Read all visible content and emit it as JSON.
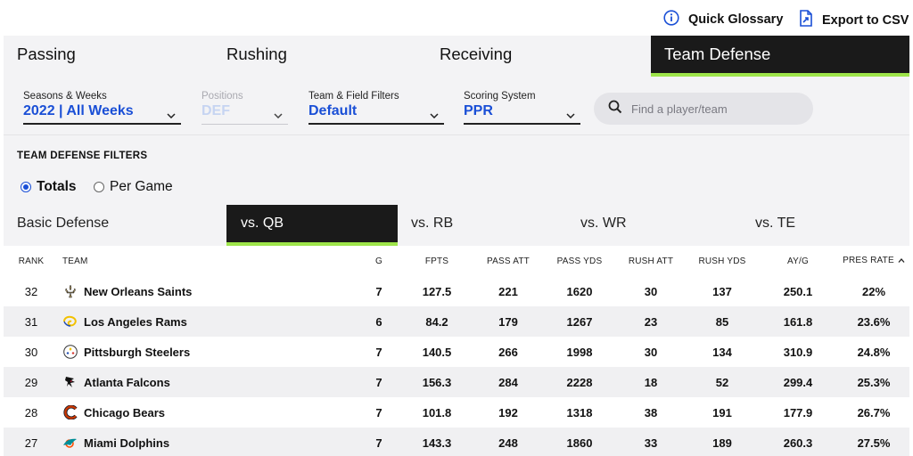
{
  "toolbar": {
    "glossary_label": "Quick Glossary",
    "export_label": "Export to CSV"
  },
  "main_tabs": [
    {
      "label": "Passing"
    },
    {
      "label": "Rushing"
    },
    {
      "label": "Receiving"
    },
    {
      "label": "Team Defense",
      "active": true
    }
  ],
  "filters": {
    "seasons": {
      "label": "Seasons & Weeks",
      "value": "2022 | All Weeks"
    },
    "positions": {
      "label": "Positions",
      "value": "DEF",
      "disabled": true
    },
    "team_field": {
      "label": "Team & Field Filters",
      "value": "Default"
    },
    "scoring": {
      "label": "Scoring System",
      "value": "PPR"
    },
    "search": {
      "placeholder": "Find a player/team"
    }
  },
  "defense_filters": {
    "title": "TEAM DEFENSE FILTERS",
    "options": [
      {
        "label": "Totals",
        "checked": true
      },
      {
        "label": "Per Game",
        "checked": false
      }
    ]
  },
  "sub_tabs": [
    {
      "label": "Basic Defense"
    },
    {
      "label": "vs. QB",
      "active": true
    },
    {
      "label": "vs. RB"
    },
    {
      "label": "vs. WR"
    },
    {
      "label": "vs. TE"
    }
  ],
  "table": {
    "headers": [
      "RANK",
      "TEAM",
      "G",
      "FPTS",
      "PASS ATT",
      "PASS YDS",
      "RUSH ATT",
      "RUSH YDS",
      "AY/G",
      "PRES RATE"
    ],
    "sort_column": "PRES RATE",
    "sort_direction": "ascending",
    "rows": [
      {
        "rank": "32",
        "team": "New Orleans Saints",
        "logo": "saints-logo",
        "g": "7",
        "fpts": "127.5",
        "pass_att": "221",
        "pass_yds": "1620",
        "rush_att": "30",
        "rush_yds": "137",
        "ayg": "250.1",
        "pres_rate": "22%"
      },
      {
        "rank": "31",
        "team": "Los Angeles Rams",
        "logo": "rams-logo",
        "g": "6",
        "fpts": "84.2",
        "pass_att": "179",
        "pass_yds": "1267",
        "rush_att": "23",
        "rush_yds": "85",
        "ayg": "161.8",
        "pres_rate": "23.6%"
      },
      {
        "rank": "30",
        "team": "Pittsburgh Steelers",
        "logo": "steelers-logo",
        "g": "7",
        "fpts": "140.5",
        "pass_att": "266",
        "pass_yds": "1998",
        "rush_att": "30",
        "rush_yds": "134",
        "ayg": "310.9",
        "pres_rate": "24.8%"
      },
      {
        "rank": "29",
        "team": "Atlanta Falcons",
        "logo": "falcons-logo",
        "g": "7",
        "fpts": "156.3",
        "pass_att": "284",
        "pass_yds": "2228",
        "rush_att": "18",
        "rush_yds": "52",
        "ayg": "299.4",
        "pres_rate": "25.3%"
      },
      {
        "rank": "28",
        "team": "Chicago Bears",
        "logo": "bears-logo",
        "g": "7",
        "fpts": "101.8",
        "pass_att": "192",
        "pass_yds": "1318",
        "rush_att": "38",
        "rush_yds": "191",
        "ayg": "177.9",
        "pres_rate": "26.7%"
      },
      {
        "rank": "27",
        "team": "Miami Dolphins",
        "logo": "dolphins-logo",
        "g": "7",
        "fpts": "143.3",
        "pass_att": "248",
        "pass_yds": "1860",
        "rush_att": "33",
        "rush_yds": "189",
        "ayg": "260.3",
        "pres_rate": "27.5%"
      }
    ]
  },
  "colors": {
    "accent_blue": "#1a4fd6",
    "active_tab_bg": "#1a1a1a",
    "active_tab_underline": "#9ee54a",
    "panel_bg": "#f3f3f5"
  }
}
